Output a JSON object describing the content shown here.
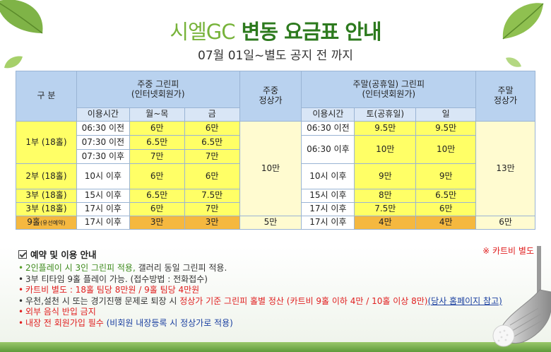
{
  "title": {
    "part1": "시엘GC",
    "part2": "변동 요금표 안내"
  },
  "subtitle": "07월 01일~별도 공지 전 까지",
  "table": {
    "h_gubun": "구 분",
    "h_weekday_green": "주중 그린피",
    "h_weekday_green_sub": "(인터넷회원가)",
    "h_weekday_regular": "주중",
    "h_weekday_regular2": "정상가",
    "h_weekend_green": "주말(공휴일) 그린피",
    "h_weekend_green_sub": "(인터넷회원가)",
    "h_weekend_regular": "주말",
    "h_weekend_regular2": "정상가",
    "sh_time1": "이용시간",
    "sh_monthu": "월~목",
    "sh_fri": "금",
    "sh_time2": "이용시간",
    "sh_sat": "토(공휴일)",
    "sh_sun": "일",
    "p1": "1부 (18홀)",
    "p2": "2부 (18홀)",
    "p3a": "3부 (18홀)",
    "p3b": "3부 (18홀)",
    "p9": "9홀",
    "p9_note": "(유선예약)",
    "r1": {
      "t": "06:30 이전",
      "a": "6만",
      "b": "6만"
    },
    "r2": {
      "t": "07:30 이전",
      "a": "6.5만",
      "b": "6.5만"
    },
    "r3": {
      "t": "07:30 이후",
      "a": "7만",
      "b": "7만"
    },
    "r4": {
      "t": "10시 이후",
      "a": "6만",
      "b": "6만"
    },
    "r5": {
      "t": "15시 이후",
      "a": "6.5만",
      "b": "7.5만"
    },
    "r6": {
      "t": "17시 이후",
      "a": "6만",
      "b": "7만"
    },
    "r7": {
      "t": "17시 이후",
      "a": "3만",
      "b": "3만"
    },
    "weekday_regular": "10만",
    "weekday_regular_9": "5만",
    "w1": {
      "t": "06:30 이전",
      "a": "9.5만",
      "b": "9.5만"
    },
    "w2": {
      "t": "06:30 이후",
      "a": "10만",
      "b": "10만"
    },
    "w4": {
      "t": "10시 이후",
      "a": "9만",
      "b": "9만"
    },
    "w5": {
      "t": "15시 이후",
      "a": "8만",
      "b": "6.5만"
    },
    "w6": {
      "t": "17시 이후",
      "a": "7.5만",
      "b": "6만"
    },
    "w7": {
      "t": "17시 이후",
      "a": "4만",
      "b": "4만"
    },
    "weekend_regular": "13만",
    "weekend_regular_9": "6만"
  },
  "notes": {
    "heading": "예약 및 이용 안내",
    "cart_note": "※ 카트비 별도",
    "n1_green": "2인플레이 시 3인 그린피 적용,",
    "n1_rest": " 갤러리 동일 그린피 적용.",
    "n2": "3부 티타임 9홀 플레이 가능. (접수방법 : 전화접수)",
    "n3": "카트비 별도 : 18홀 팀당 8만원 / 9홀 팀당 4만원",
    "n4_a": "우천,설천 시 또는 경기진행 문제로 퇴장 시 ",
    "n4_red": "정상가 기준 그린피 홀별 정산 (카트비 9홀 이하 4만 / 10홀 이상 8만)",
    "n4_link": "(당사 홈페이지 참고)",
    "n5": "외부 음식 반입 금지",
    "n6_red": "내장 전 회원가입 필수",
    "n6_blue": " (비회원 내장등록 시 정상가로 적용)"
  },
  "colors": {
    "highlight_yellow": "#ffff66",
    "highlight_orange": "#f5b83f",
    "header_blue": "#b9d2ef",
    "title_green": "#2d7a1e"
  }
}
